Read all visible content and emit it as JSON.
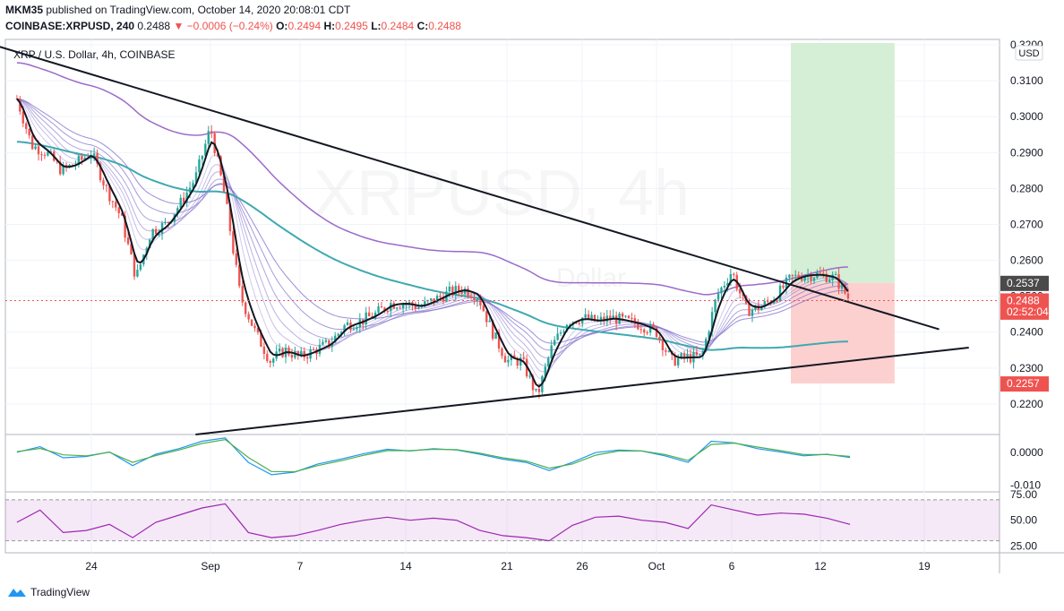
{
  "header": {
    "author": "MKM35",
    "published_text": "published on TradingView.com, October 14, 2020 20:08:01 CDT",
    "symbol": "COINBASE:XRPUSD, 240",
    "price": "0.2488",
    "change": "−0.0006 (−0.24%)",
    "open_label": "O:",
    "open": "0.2494",
    "high_label": "H:",
    "high": "0.2495",
    "low_label": "L:",
    "low": "0.2484",
    "close_label": "C:",
    "close": "0.2488"
  },
  "legend_title": "XRP / U.S. Dollar, 4h, COINBASE",
  "watermark": {
    "main": "XRPUSD, 4h",
    "sub": "Dollar"
  },
  "currency_badge": "USD",
  "footer": {
    "brand": "TradingView"
  },
  "colors": {
    "up": "#26a69a",
    "down": "#ef5350",
    "ema_fast": "#131722",
    "ma_slow": "#3fa9b0",
    "ribbon": "#7b68c9",
    "rsi": "#9c27b0",
    "macd": "#2196f3",
    "signal": "#4caf50",
    "target": "#d4efd6",
    "stop": "#fdd0d0"
  },
  "chart_data": [
    {
      "type": "candlestick",
      "title": "XRP / U.S. Dollar, 4h, COINBASE",
      "x_ticks": [
        "24",
        "Sep",
        "7",
        "14",
        "21",
        "26",
        "Oct",
        "6",
        "12",
        "19"
      ],
      "x_tick_dates": [
        "2020-08-24",
        "2020-09-01",
        "2020-09-07",
        "2020-09-14",
        "2020-09-21",
        "2020-09-26",
        "2020-10-01",
        "2020-10-06",
        "2020-10-12",
        "2020-10-19"
      ],
      "y_ticks": [
        "0.2200",
        "0.2300",
        "0.2400",
        "0.2500",
        "0.2600",
        "0.2700",
        "0.2800",
        "0.2900",
        "0.3000",
        "0.3100",
        "0.3200"
      ],
      "ylim": [
        0.2115,
        0.3215
      ],
      "price_labels": [
        {
          "text": "0.2537",
          "value": 0.2537,
          "color": "#4a4a4a"
        },
        {
          "text": "0.2488",
          "value": 0.2488,
          "color": "#ef5350"
        },
        {
          "text": "02:52:04",
          "value": 0.2457,
          "color": "#ef5350"
        },
        {
          "text": "0.2257",
          "value": 0.2257,
          "color": "#ef5350"
        }
      ],
      "close_path": [
        [
          "2020-08-19",
          0.305
        ],
        [
          "2020-08-20",
          0.292
        ],
        [
          "2020-08-21",
          0.29
        ],
        [
          "2020-08-22",
          0.285
        ],
        [
          "2020-08-23",
          0.287
        ],
        [
          "2020-08-24",
          0.29
        ],
        [
          "2020-08-25",
          0.28
        ],
        [
          "2020-08-26",
          0.272
        ],
        [
          "2020-08-27",
          0.255
        ],
        [
          "2020-08-28",
          0.268
        ],
        [
          "2020-08-29",
          0.27
        ],
        [
          "2020-08-30",
          0.276
        ],
        [
          "2020-08-31",
          0.283
        ],
        [
          "2020-09-01",
          0.297
        ],
        [
          "2020-09-02",
          0.277
        ],
        [
          "2020-09-03",
          0.25
        ],
        [
          "2020-09-04",
          0.24
        ],
        [
          "2020-09-05",
          0.232
        ],
        [
          "2020-09-06",
          0.235
        ],
        [
          "2020-09-07",
          0.233
        ],
        [
          "2020-09-08",
          0.235
        ],
        [
          "2020-09-09",
          0.237
        ],
        [
          "2020-09-10",
          0.242
        ],
        [
          "2020-09-11",
          0.243
        ],
        [
          "2020-09-12",
          0.245
        ],
        [
          "2020-09-13",
          0.248
        ],
        [
          "2020-09-14",
          0.248
        ],
        [
          "2020-09-15",
          0.247
        ],
        [
          "2020-09-16",
          0.249
        ],
        [
          "2020-09-17",
          0.251
        ],
        [
          "2020-09-18",
          0.252
        ],
        [
          "2020-09-19",
          0.25
        ],
        [
          "2020-09-20",
          0.24
        ],
        [
          "2020-09-21",
          0.232
        ],
        [
          "2020-09-22",
          0.232
        ],
        [
          "2020-09-23",
          0.222
        ],
        [
          "2020-09-24",
          0.236
        ],
        [
          "2020-09-25",
          0.243
        ],
        [
          "2020-09-26",
          0.244
        ],
        [
          "2020-09-27",
          0.243
        ],
        [
          "2020-09-28",
          0.244
        ],
        [
          "2020-09-29",
          0.243
        ],
        [
          "2020-09-30",
          0.242
        ],
        [
          "2020-10-01",
          0.24
        ],
        [
          "2020-10-02",
          0.232
        ],
        [
          "2020-10-03",
          0.233
        ],
        [
          "2020-10-04",
          0.233
        ],
        [
          "2020-10-05",
          0.25
        ],
        [
          "2020-10-06",
          0.257
        ],
        [
          "2020-10-07",
          0.246
        ],
        [
          "2020-10-08",
          0.247
        ],
        [
          "2020-10-09",
          0.25
        ],
        [
          "2020-10-10",
          0.255
        ],
        [
          "2020-10-11",
          0.256
        ],
        [
          "2020-10-12",
          0.256
        ],
        [
          "2020-10-13",
          0.255
        ],
        [
          "2020-10-14",
          0.2488
        ]
      ],
      "trendlines": [
        {
          "name": "upper",
          "from": [
            "2020-08-17",
            0.3205
          ],
          "to": [
            "2020-10-20",
            0.2408
          ]
        },
        {
          "name": "lower",
          "from": [
            "2020-08-31",
            0.2115
          ],
          "to": [
            "2020-10-22",
            0.2357
          ]
        }
      ],
      "position": {
        "entry": 0.2537,
        "target": 0.3205,
        "stop": 0.2257,
        "from": "2020-10-10",
        "to": "2020-10-17"
      },
      "current_price": 0.2488
    },
    {
      "type": "line",
      "title": "",
      "y_ticks": [
        "0.0000",
        "-0.010"
      ],
      "ylim": [
        -0.0115,
        0.005
      ],
      "series": [
        {
          "color": "#2196f3",
          "values": [
            0.0001,
            0.0018,
            -0.0016,
            -0.0012,
            0.0002,
            -0.004,
            -0.0005,
            0.0012,
            0.0035,
            0.0045,
            -0.003,
            -0.0068,
            -0.006,
            -0.0035,
            -0.002,
            -0.0003,
            0.001,
            0.0005,
            0.0012,
            0.0008,
            -0.0005,
            -0.002,
            -0.003,
            -0.0055,
            -0.003,
            0.0,
            0.0008,
            0.0005,
            -0.001,
            -0.003,
            0.0035,
            0.003,
            0.0012,
            0.0002,
            -0.001,
            -0.0005,
            -0.0015
          ]
        },
        {
          "color": "#4caf50",
          "values": [
            0.0003,
            0.0013,
            -0.0007,
            -0.001,
            0.0001,
            -0.003,
            -0.0009,
            0.0008,
            0.0028,
            0.004,
            -0.0015,
            -0.0058,
            -0.0059,
            -0.004,
            -0.0025,
            -0.0008,
            0.0006,
            0.0006,
            0.001,
            0.0009,
            -0.0002,
            -0.0016,
            -0.0026,
            -0.0048,
            -0.0035,
            -0.0008,
            0.0005,
            0.0005,
            -0.0006,
            -0.0024,
            0.0025,
            0.0029,
            0.0017,
            0.0006,
            -0.0006,
            -0.0006,
            -0.0012
          ]
        }
      ]
    },
    {
      "type": "line",
      "title": "",
      "y_ticks": [
        "75.00",
        "50.00",
        "25.00"
      ],
      "ylim": [
        20,
        76
      ],
      "bands": [
        30,
        70
      ],
      "series": [
        {
          "color": "#9c27b0",
          "values": [
            48,
            60,
            38,
            40,
            46,
            33,
            48,
            55,
            62,
            66,
            38,
            33,
            35,
            40,
            46,
            50,
            53,
            50,
            52,
            50,
            40,
            35,
            33,
            30,
            45,
            53,
            54,
            50,
            48,
            42,
            65,
            60,
            55,
            57,
            56,
            52,
            46
          ]
        }
      ]
    }
  ]
}
